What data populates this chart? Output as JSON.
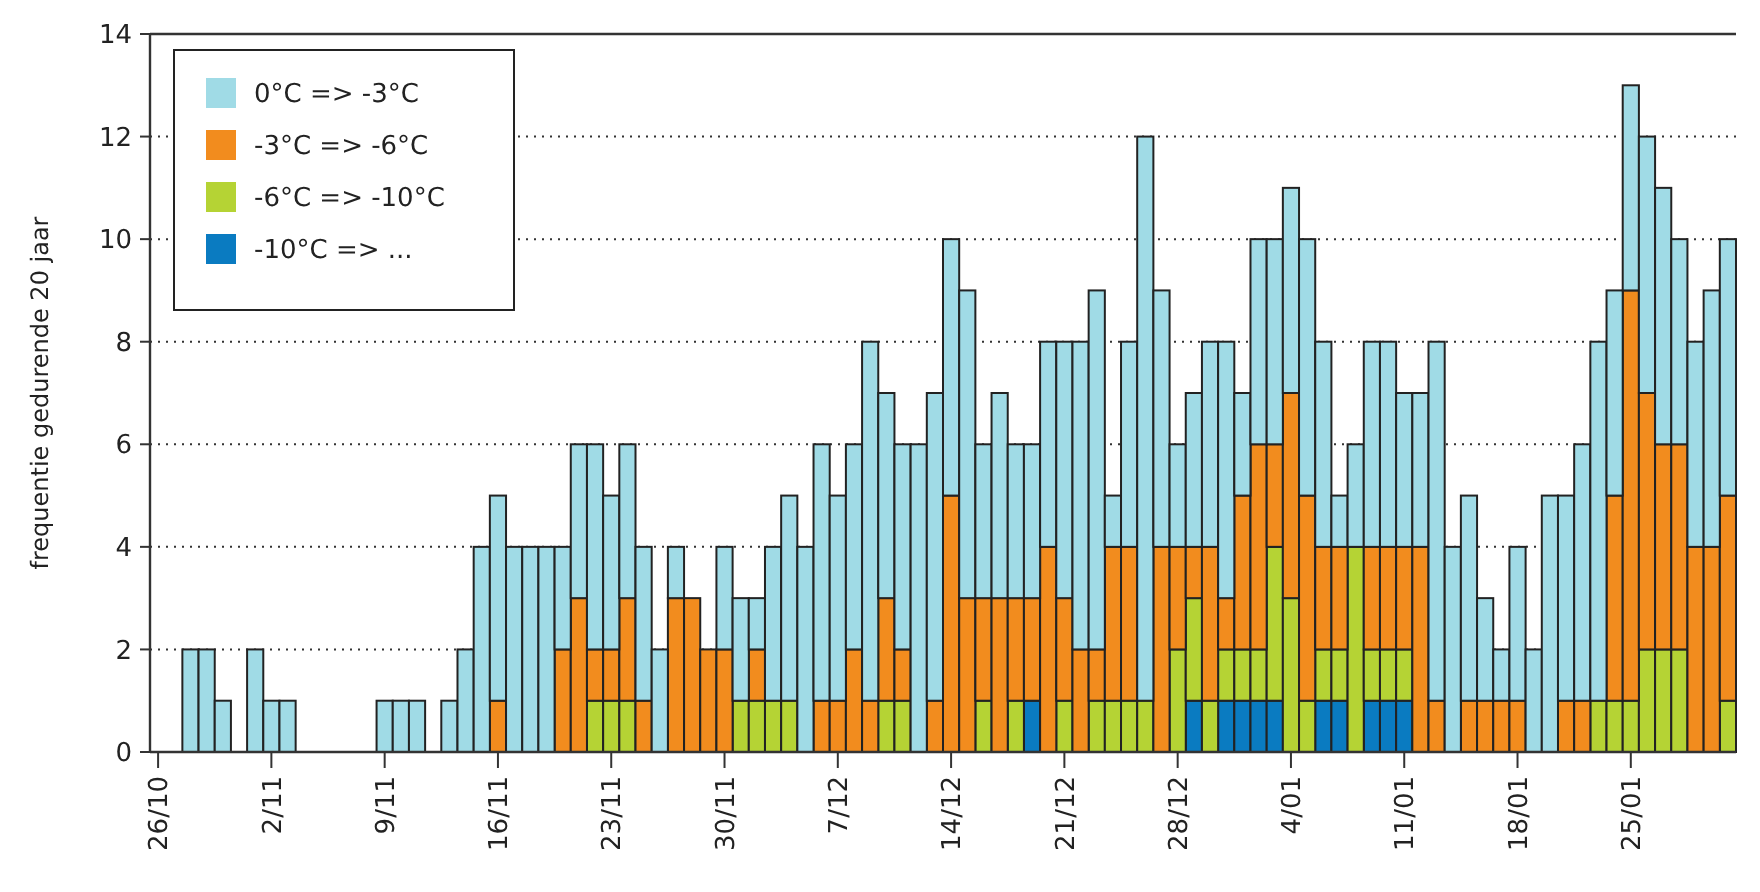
{
  "chart_data": {
    "type": "bar",
    "stacked": true,
    "ylabel": "frequentie gedurende 20 jaar",
    "categories": [
      "26/10",
      null,
      null,
      null,
      null,
      null,
      null,
      "2/11",
      null,
      null,
      null,
      null,
      null,
      null,
      "9/11",
      null,
      null,
      null,
      null,
      null,
      null,
      "16/11",
      null,
      null,
      null,
      null,
      null,
      null,
      "23/11",
      null,
      null,
      null,
      null,
      null,
      null,
      "30/11",
      null,
      null,
      null,
      null,
      null,
      null,
      "7/12",
      null,
      null,
      null,
      null,
      null,
      null,
      "14/12",
      null,
      null,
      null,
      null,
      null,
      null,
      "21/12",
      null,
      null,
      null,
      null,
      null,
      null,
      "28/12",
      null,
      null,
      null,
      null,
      null,
      null,
      "4/01",
      null,
      null,
      null,
      null,
      null,
      null,
      "11/01",
      null,
      null,
      null,
      null,
      null,
      null,
      "18/01",
      null,
      null,
      null,
      null,
      null,
      null,
      "25/01",
      null,
      null,
      null,
      null,
      null,
      null
    ],
    "series": [
      {
        "name": "-10°C => ...",
        "color": "#0a7bc1",
        "values": [
          0,
          0,
          0,
          0,
          0,
          0,
          0,
          0,
          0,
          0,
          0,
          0,
          0,
          0,
          0,
          0,
          0,
          0,
          0,
          0,
          0,
          0,
          0,
          0,
          0,
          0,
          0,
          0,
          0,
          0,
          0,
          0,
          0,
          0,
          0,
          0,
          0,
          0,
          0,
          0,
          0,
          0,
          0,
          0,
          0,
          0,
          0,
          0,
          0,
          0,
          0,
          0,
          0,
          0,
          1,
          0,
          0,
          0,
          0,
          0,
          0,
          0,
          0,
          0,
          1,
          0,
          1,
          1,
          1,
          1,
          0,
          0,
          1,
          1,
          0,
          1,
          1,
          1,
          0,
          0,
          0,
          0,
          0,
          0,
          0,
          0,
          0,
          0,
          0,
          0,
          0,
          0,
          0,
          0,
          0,
          0,
          0,
          0
        ]
      },
      {
        "name": "-6°C => -10°C",
        "color": "#b5d334",
        "values": [
          0,
          0,
          0,
          0,
          0,
          0,
          0,
          0,
          0,
          0,
          0,
          0,
          0,
          0,
          0,
          0,
          0,
          0,
          0,
          0,
          0,
          0,
          0,
          0,
          0,
          0,
          0,
          1,
          1,
          1,
          0,
          0,
          0,
          0,
          0,
          0,
          1,
          1,
          1,
          1,
          0,
          0,
          0,
          0,
          0,
          1,
          1,
          0,
          0,
          0,
          0,
          1,
          0,
          1,
          0,
          0,
          1,
          0,
          1,
          1,
          1,
          1,
          0,
          2,
          2,
          1,
          1,
          1,
          1,
          3,
          3,
          1,
          1,
          1,
          4,
          1,
          1,
          1,
          0,
          0,
          0,
          0,
          0,
          0,
          0,
          0,
          0,
          0,
          0,
          1,
          1,
          1,
          2,
          2,
          2,
          0,
          0,
          1
        ]
      },
      {
        "name": "-3°C => -6°C",
        "color": "#f28c1e",
        "values": [
          0,
          0,
          0,
          0,
          0,
          0,
          0,
          0,
          0,
          0,
          0,
          0,
          0,
          0,
          0,
          0,
          0,
          0,
          0,
          0,
          0,
          1,
          0,
          0,
          0,
          2,
          3,
          1,
          1,
          2,
          1,
          0,
          3,
          3,
          2,
          2,
          0,
          1,
          0,
          0,
          0,
          1,
          1,
          2,
          1,
          2,
          1,
          0,
          1,
          5,
          3,
          2,
          3,
          2,
          2,
          4,
          2,
          2,
          1,
          3,
          3,
          0,
          4,
          2,
          1,
          3,
          1,
          3,
          4,
          2,
          4,
          4,
          2,
          2,
          0,
          2,
          2,
          2,
          4,
          1,
          0,
          1,
          1,
          1,
          1,
          0,
          0,
          1,
          1,
          0,
          4,
          8,
          5,
          4,
          4,
          4,
          4,
          4
        ]
      },
      {
        "name": "0°C => -3°C",
        "color": "#a0dbe6",
        "values": [
          0,
          0,
          2,
          2,
          1,
          0,
          2,
          1,
          1,
          0,
          0,
          0,
          0,
          0,
          1,
          1,
          1,
          0,
          1,
          2,
          4,
          4,
          4,
          4,
          4,
          2,
          3,
          4,
          3,
          3,
          3,
          2,
          1,
          0,
          0,
          2,
          2,
          1,
          3,
          4,
          4,
          5,
          4,
          4,
          7,
          4,
          4,
          6,
          6,
          5,
          6,
          3,
          4,
          3,
          3,
          4,
          5,
          6,
          7,
          1,
          4,
          11,
          5,
          2,
          3,
          4,
          5,
          2,
          4,
          4,
          4,
          5,
          4,
          1,
          2,
          4,
          4,
          3,
          3,
          7,
          4,
          4,
          2,
          1,
          3,
          2,
          5,
          4,
          5,
          7,
          4,
          4,
          5,
          5,
          4,
          4,
          5,
          5
        ]
      }
    ],
    "ylim": [
      0,
      14
    ],
    "yticks": [
      0,
      2,
      4,
      6,
      8,
      10,
      12,
      14
    ],
    "grid": "y",
    "legend": "top left"
  }
}
